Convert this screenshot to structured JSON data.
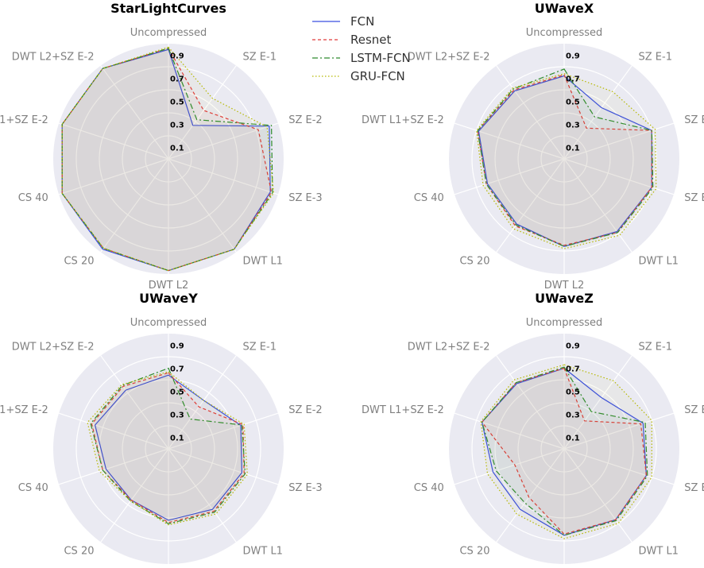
{
  "chart_data": {
    "type": "radar",
    "axes": [
      "Uncompressed",
      "SZ E-1",
      "SZ E-2",
      "SZ E-3",
      "DWT L1",
      "DWT L2",
      "CS 20",
      "CS 40",
      "DWT L1+SZ E-2",
      "DWT L2+SZ E-2"
    ],
    "rticks": [
      "0.1",
      "0.3",
      "0.5",
      "0.7",
      "0.9"
    ],
    "rlim": [
      0,
      1
    ],
    "grid": true,
    "legend_position": "top-center",
    "legend": [
      {
        "name": "FCN",
        "color": "#3a4fe0",
        "dash": "solid"
      },
      {
        "name": "Resnet",
        "color": "#e03a3a",
        "dash": "dashed"
      },
      {
        "name": "LSTM-FCN",
        "color": "#2e8b2e",
        "dash": "dashdot"
      },
      {
        "name": "GRU-FCN",
        "color": "#b5b800",
        "dash": "dotted"
      }
    ],
    "subplots": [
      {
        "title": "StarLightCurves",
        "series": [
          {
            "name": "FCN",
            "values": [
              0.95,
              0.36,
              0.92,
              0.93,
              0.97,
              0.97,
              0.97,
              0.97,
              0.97,
              0.97
            ]
          },
          {
            "name": "Resnet",
            "values": [
              0.96,
              0.52,
              0.82,
              0.94,
              0.97,
              0.97,
              0.96,
              0.97,
              0.97,
              0.97
            ]
          },
          {
            "name": "LSTM-FCN",
            "values": [
              0.96,
              0.42,
              0.94,
              0.95,
              0.97,
              0.97,
              0.96,
              0.97,
              0.97,
              0.97
            ]
          },
          {
            "name": "GRU-FCN",
            "values": [
              0.97,
              0.65,
              0.9,
              0.96,
              0.97,
              0.97,
              0.96,
              0.97,
              0.97,
              0.97
            ]
          }
        ]
      },
      {
        "title": "UWaveX",
        "series": [
          {
            "name": "FCN",
            "values": [
              0.72,
              0.55,
              0.8,
              0.8,
              0.78,
              0.76,
              0.7,
              0.7,
              0.78,
              0.73
            ]
          },
          {
            "name": "Resnet",
            "values": [
              0.73,
              0.33,
              0.8,
              0.8,
              0.79,
              0.75,
              0.72,
              0.71,
              0.79,
              0.74
            ]
          },
          {
            "name": "LSTM-FCN",
            "values": [
              0.78,
              0.45,
              0.8,
              0.81,
              0.79,
              0.76,
              0.71,
              0.71,
              0.79,
              0.75
            ]
          },
          {
            "name": "GRU-FCN",
            "values": [
              0.74,
              0.72,
              0.83,
              0.84,
              0.82,
              0.78,
              0.75,
              0.74,
              0.8,
              0.76
            ]
          }
        ]
      },
      {
        "title": "UWaveY",
        "series": [
          {
            "name": "FCN",
            "values": [
              0.64,
              0.52,
              0.66,
              0.67,
              0.65,
              0.62,
              0.55,
              0.57,
              0.67,
              0.63
            ]
          },
          {
            "name": "Resnet",
            "values": [
              0.66,
              0.45,
              0.68,
              0.69,
              0.67,
              0.64,
              0.55,
              0.6,
              0.7,
              0.67
            ]
          },
          {
            "name": "LSTM-FCN",
            "values": [
              0.7,
              0.32,
              0.67,
              0.7,
              0.68,
              0.65,
              0.56,
              0.6,
              0.71,
              0.68
            ]
          },
          {
            "name": "GRU-FCN",
            "values": [
              0.67,
              0.52,
              0.69,
              0.72,
              0.7,
              0.66,
              0.56,
              0.63,
              0.74,
              0.69
            ]
          }
        ]
      },
      {
        "title": "UWaveZ",
        "series": [
          {
            "name": "FCN",
            "values": [
              0.7,
              0.55,
              0.72,
              0.75,
              0.76,
              0.75,
              0.65,
              0.65,
              0.75,
              0.7
            ]
          },
          {
            "name": "Resnet",
            "values": [
              0.7,
              0.3,
              0.7,
              0.75,
              0.76,
              0.74,
              0.52,
              0.45,
              0.75,
              0.71
            ]
          },
          {
            "name": "LSTM-FCN",
            "values": [
              0.71,
              0.4,
              0.74,
              0.76,
              0.77,
              0.75,
              0.58,
              0.62,
              0.75,
              0.71
            ]
          },
          {
            "name": "GRU-FCN",
            "values": [
              0.73,
              0.73,
              0.8,
              0.8,
              0.8,
              0.78,
              0.7,
              0.7,
              0.76,
              0.74
            ]
          }
        ]
      }
    ]
  }
}
